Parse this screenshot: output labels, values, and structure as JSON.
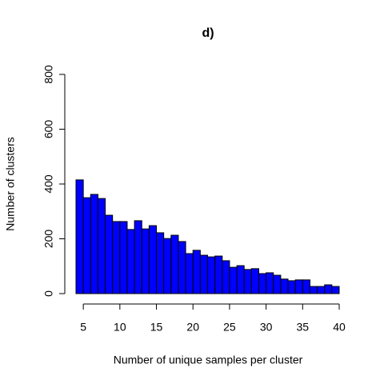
{
  "chart_data": {
    "type": "histogram",
    "title": "d)",
    "xlabel": "Number of unique samples per cluster",
    "ylabel": "Number of clusters",
    "color": "#0000ff",
    "bins": [
      4,
      5,
      6,
      7,
      8,
      9,
      10,
      11,
      12,
      13,
      14,
      15,
      16,
      17,
      18,
      19,
      20,
      21,
      22,
      23,
      24,
      25,
      26,
      27,
      28,
      29,
      30,
      31,
      32,
      33,
      34,
      35,
      36,
      37,
      38,
      39,
      40
    ],
    "values": [
      415,
      350,
      362,
      347,
      286,
      263,
      263,
      234,
      266,
      236,
      248,
      222,
      201,
      213,
      190,
      146,
      158,
      140,
      134,
      137,
      120,
      96,
      102,
      88,
      91,
      73,
      76,
      67,
      53,
      47,
      50,
      50,
      26,
      26,
      32,
      26
    ],
    "xlim": [
      4,
      40
    ],
    "xticks": [
      5,
      10,
      15,
      20,
      25,
      30,
      35,
      40
    ],
    "ylim": [
      0,
      800
    ],
    "yticks": [
      0,
      200,
      400,
      600,
      800
    ]
  }
}
